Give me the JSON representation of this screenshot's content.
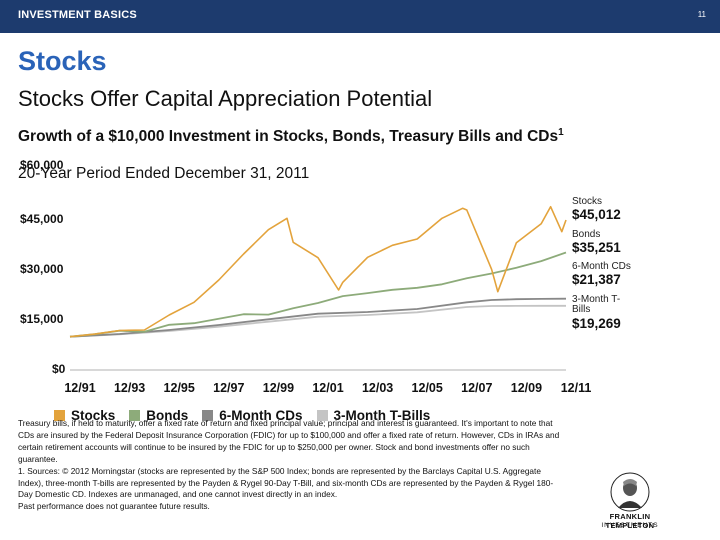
{
  "header": {
    "section": "INVESTMENT BASICS",
    "page_number": "11"
  },
  "page": {
    "title": "Stocks",
    "subtitle": "Stocks Offer Capital Appreciation Potential"
  },
  "chart_heading": {
    "title": "Growth of a $10,000 Investment in Stocks, Bonds, Treasury Bills and CDs",
    "footnote_mark": "1",
    "period": "20-Year Period Ended December 31, 2011"
  },
  "chart_data": {
    "type": "line",
    "x_ticks": [
      "12/91",
      "12/93",
      "12/95",
      "12/97",
      "12/99",
      "12/01",
      "12/03",
      "12/05",
      "12/07",
      "12/09",
      "12/11"
    ],
    "y_ticks": [
      "$0",
      "$15,000",
      "$30,000",
      "$45,000",
      "$60,000"
    ],
    "ylim": [
      0,
      60000
    ],
    "xlim": [
      1991.92,
      2011.92
    ],
    "colors": {
      "Stocks": "#e3a33c",
      "Bonds": "#8dab7a",
      "6-Month CDs": "#888888",
      "3-Month T-Bills": "#c4c4c4"
    },
    "series": [
      {
        "name": "Stocks",
        "end_label": "$45,012",
        "x": [
          1991.92,
          1992.92,
          1993.92,
          1994.92,
          1995.92,
          1996.92,
          1997.92,
          1998.92,
          1999.92,
          2000.67,
          2000.92,
          2001.92,
          2002.75,
          2002.92,
          2003.92,
          2004.92,
          2005.92,
          2006.92,
          2007.75,
          2007.92,
          2008.92,
          2009.17,
          2009.92,
          2010.92,
          2011.3,
          2011.75,
          2011.92
        ],
        "y": [
          10000,
          10760,
          11840,
          12000,
          16500,
          20300,
          27000,
          34800,
          42100,
          45500,
          38300,
          33700,
          24000,
          26300,
          33800,
          37400,
          39300,
          45500,
          48500,
          48000,
          30200,
          23500,
          38200,
          43900,
          49000,
          41500,
          45012
        ]
      },
      {
        "name": "Bonds",
        "end_label": "$35,251",
        "x": [
          1991.92,
          1992.92,
          1993.92,
          1994.92,
          1995.92,
          1996.92,
          1997.92,
          1998.92,
          1999.92,
          2000.92,
          2001.92,
          2002.92,
          2003.92,
          2004.92,
          2005.92,
          2006.92,
          2007.92,
          2008.92,
          2009.92,
          2010.92,
          2011.92
        ],
        "y": [
          10000,
          10740,
          11790,
          11450,
          13560,
          14050,
          15400,
          16750,
          16610,
          18540,
          20100,
          22160,
          23070,
          24070,
          24650,
          25710,
          27500,
          28940,
          30660,
          32670,
          35251
        ]
      },
      {
        "name": "6-Month CDs",
        "end_label": "$21,387",
        "x": [
          1991.92,
          1993.92,
          1995.92,
          1997.92,
          1999.92,
          2001.92,
          2003.92,
          2005.92,
          2007.92,
          2008.92,
          2009.92,
          2010.92,
          2011.92
        ],
        "y": [
          10000,
          10800,
          12000,
          13500,
          15200,
          16900,
          17400,
          18300,
          20300,
          21000,
          21250,
          21330,
          21387
        ]
      },
      {
        "name": "3-Month T-Bills",
        "end_label": "$19,269",
        "x": [
          1991.92,
          1993.92,
          1995.92,
          1997.92,
          1999.92,
          2001.92,
          2003.92,
          2005.92,
          2007.92,
          2008.92,
          2009.92,
          2010.92,
          2011.92
        ],
        "y": [
          10000,
          10700,
          11700,
          13000,
          14500,
          16000,
          16500,
          17300,
          18900,
          19200,
          19240,
          19260,
          19269
        ]
      }
    ],
    "legend": [
      "Stocks",
      "Bonds",
      "6-Month CDs",
      "3-Month T-Bills"
    ],
    "right_labels": [
      {
        "name": "Stocks",
        "value": "$45,012"
      },
      {
        "name": "Bonds",
        "value": "$35,251"
      },
      {
        "name": "6-Month CDs",
        "value": "$21,387"
      },
      {
        "name": "3-Month T-Bills",
        "value": "$19,269"
      }
    ],
    "right_label_name_lines": {
      "3-Month T-Bills": [
        "3-Month T-",
        "Bills"
      ]
    }
  },
  "footnotes": [
    "Treasury bills, if held to maturity, offer a fixed rate of return and fixed principal value; principal and interest is guaranteed. It's important to note that CDs are insured by the Federal Deposit Insurance Corporation (FDIC) for up to $100,000 and offer a fixed rate of return. However, CDs in IRAs and certain retirement accounts will continue to be insured by the FDIC for up to $250,000 per owner. Stock and bond investments offer no such guarantee.",
    "1. Sources: © 2012 Morningstar (stocks are represented by the S&P 500 Index; bonds are represented by the Barclays Capital U.S. Aggregate Index), three-month T-bills are represented by the Payden & Rygel 90-Day T-Bill, and six-month CDs are represented by the Payden & Rygel 180-Day Domestic CD. Indexes are unmanaged, and one cannot invest directly in an index.",
    "Past performance does not guarantee future results."
  ],
  "logo": {
    "line1": "FRANKLIN TEMPLETON",
    "line2": "INVESTMENTS"
  }
}
